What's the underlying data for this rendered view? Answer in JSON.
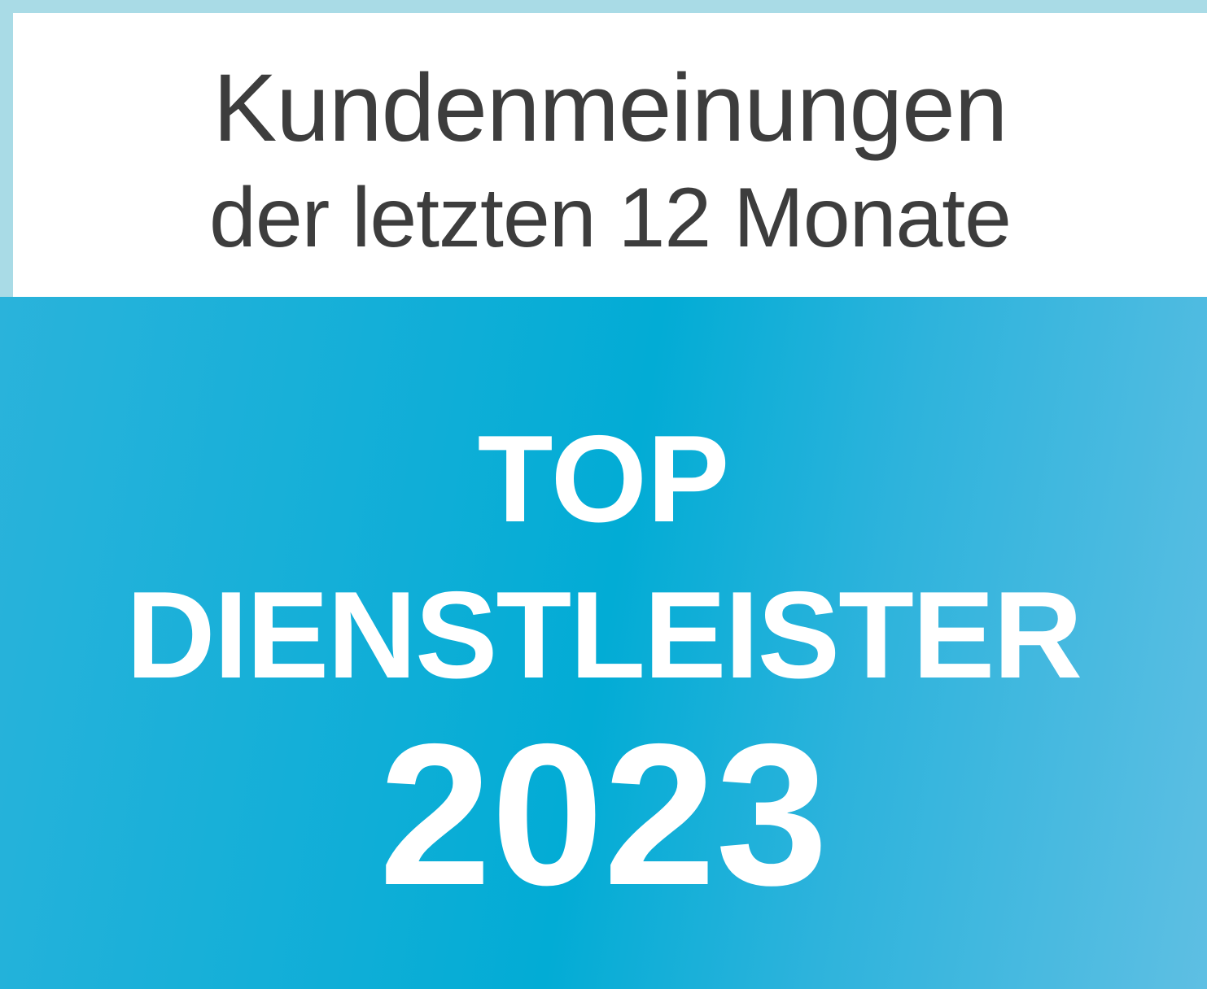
{
  "header": {
    "line1": "Kundenmeinungen",
    "line2": "der letzten 12 Monate"
  },
  "badge": {
    "line1": "TOP",
    "line2": "DIENSTLEISTER",
    "year": "2023"
  },
  "colors": {
    "frame": "#a9dbe6",
    "panel": "#02acd5",
    "panel_light": "#5ebfe3",
    "text_dark": "#3d3d3d",
    "text_light": "#ffffff"
  }
}
